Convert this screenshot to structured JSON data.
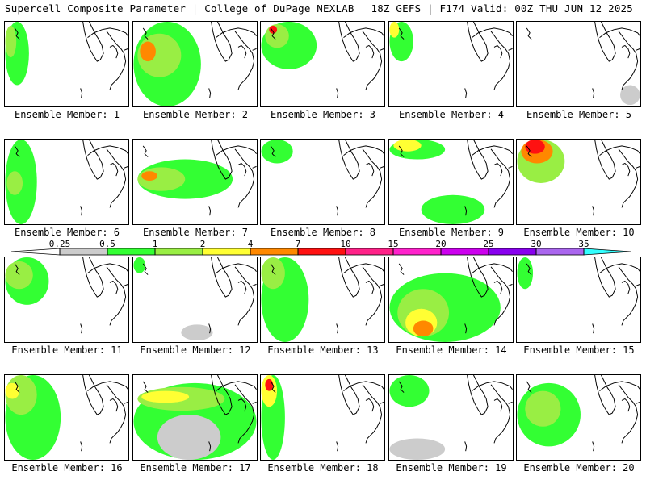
{
  "header": {
    "title_left": "Supercell Composite Parameter | College of DuPage NEXLAB",
    "title_right": "18Z GEFS | F174 Valid: 00Z THU JUN 12 2025"
  },
  "legend": {
    "ticks": [
      "0.25",
      "0.5",
      "1",
      "2",
      "4",
      "7",
      "10",
      "15",
      "20",
      "25",
      "30",
      "35"
    ],
    "colors": [
      "#cccccc",
      "#33ff33",
      "#99ee44",
      "#ffff33",
      "#ff8800",
      "#ff1111",
      "#ff2288",
      "#ff22cc",
      "#cc00ee",
      "#8800ee",
      "#aa66ee",
      "#33ffff"
    ]
  },
  "panels": [
    {
      "label": "Ensemble Member: 1",
      "blobs": [
        {
          "x": 0,
          "y": 0,
          "w": 30,
          "h": 80,
          "c": "#33ff33"
        },
        {
          "x": 0,
          "y": 5,
          "w": 14,
          "h": 40,
          "c": "#99ee44"
        }
      ]
    },
    {
      "label": "Ensemble Member: 2",
      "blobs": [
        {
          "x": 0,
          "y": 0,
          "w": 85,
          "h": 107,
          "c": "#33ff33"
        },
        {
          "x": 5,
          "y": 15,
          "w": 55,
          "h": 55,
          "c": "#99ee44"
        },
        {
          "x": 8,
          "y": 25,
          "w": 20,
          "h": 25,
          "c": "#ff8800"
        }
      ]
    },
    {
      "label": "Ensemble Member: 3",
      "blobs": [
        {
          "x": 0,
          "y": 0,
          "w": 70,
          "h": 60,
          "c": "#33ff33"
        },
        {
          "x": 5,
          "y": 3,
          "w": 30,
          "h": 30,
          "c": "#99ee44"
        },
        {
          "x": 10,
          "y": 5,
          "w": 10,
          "h": 10,
          "c": "#ff1111"
        }
      ]
    },
    {
      "label": "Ensemble Member: 4",
      "blobs": [
        {
          "x": 0,
          "y": 0,
          "w": 30,
          "h": 50,
          "c": "#33ff33"
        },
        {
          "x": 0,
          "y": 0,
          "w": 12,
          "h": 20,
          "c": "#ffff33"
        }
      ]
    },
    {
      "label": "Ensemble Member: 5",
      "blobs": [
        {
          "x": 130,
          "y": 80,
          "w": 25,
          "h": 25,
          "c": "#cccccc"
        }
      ]
    },
    {
      "label": "Ensemble Member: 6",
      "blobs": [
        {
          "x": 0,
          "y": 0,
          "w": 40,
          "h": 107,
          "c": "#33ff33"
        },
        {
          "x": 2,
          "y": 40,
          "w": 20,
          "h": 30,
          "c": "#99ee44"
        }
      ]
    },
    {
      "label": "Ensemble Member: 7",
      "blobs": [
        {
          "x": 5,
          "y": 25,
          "w": 120,
          "h": 50,
          "c": "#33ff33"
        },
        {
          "x": 5,
          "y": 35,
          "w": 60,
          "h": 30,
          "c": "#99ee44"
        },
        {
          "x": 10,
          "y": 40,
          "w": 20,
          "h": 12,
          "c": "#ff8800"
        }
      ]
    },
    {
      "label": "Ensemble Member: 8",
      "blobs": [
        {
          "x": 0,
          "y": 0,
          "w": 40,
          "h": 30,
          "c": "#33ff33"
        }
      ]
    },
    {
      "label": "Ensemble Member: 9",
      "blobs": [
        {
          "x": 0,
          "y": 0,
          "w": 70,
          "h": 25,
          "c": "#33ff33"
        },
        {
          "x": 5,
          "y": 0,
          "w": 35,
          "h": 15,
          "c": "#ffff33"
        },
        {
          "x": 40,
          "y": 70,
          "w": 80,
          "h": 37,
          "c": "#33ff33"
        }
      ]
    },
    {
      "label": "Ensemble Member: 10",
      "blobs": [
        {
          "x": 0,
          "y": 0,
          "w": 60,
          "h": 55,
          "c": "#99ee44"
        },
        {
          "x": 5,
          "y": 0,
          "w": 40,
          "h": 30,
          "c": "#ff8800"
        },
        {
          "x": 10,
          "y": 0,
          "w": 25,
          "h": 18,
          "c": "#ff1111"
        }
      ]
    },
    {
      "label": "Ensemble Member: 11",
      "blobs": [
        {
          "x": 0,
          "y": 0,
          "w": 55,
          "h": 60,
          "c": "#33ff33"
        },
        {
          "x": 0,
          "y": 5,
          "w": 35,
          "h": 35,
          "c": "#99ee44"
        }
      ]
    },
    {
      "label": "Ensemble Member: 12",
      "blobs": [
        {
          "x": 0,
          "y": 0,
          "w": 15,
          "h": 20,
          "c": "#33ff33"
        },
        {
          "x": 60,
          "y": 85,
          "w": 40,
          "h": 20,
          "c": "#cccccc"
        }
      ]
    },
    {
      "label": "Ensemble Member: 13",
      "blobs": [
        {
          "x": 0,
          "y": 0,
          "w": 60,
          "h": 107,
          "c": "#33ff33"
        },
        {
          "x": 0,
          "y": 0,
          "w": 30,
          "h": 40,
          "c": "#99ee44"
        }
      ]
    },
    {
      "label": "Ensemble Member: 14",
      "blobs": [
        {
          "x": 0,
          "y": 20,
          "w": 140,
          "h": 87,
          "c": "#33ff33"
        },
        {
          "x": 10,
          "y": 40,
          "w": 65,
          "h": 60,
          "c": "#99ee44"
        },
        {
          "x": 20,
          "y": 65,
          "w": 40,
          "h": 35,
          "c": "#ffff33"
        },
        {
          "x": 30,
          "y": 80,
          "w": 25,
          "h": 20,
          "c": "#ff8800"
        }
      ]
    },
    {
      "label": "Ensemble Member: 15",
      "blobs": [
        {
          "x": 0,
          "y": 0,
          "w": 20,
          "h": 40,
          "c": "#33ff33"
        }
      ]
    },
    {
      "label": "Ensemble Member: 16",
      "blobs": [
        {
          "x": 0,
          "y": 0,
          "w": 70,
          "h": 107,
          "c": "#33ff33"
        },
        {
          "x": 0,
          "y": 0,
          "w": 40,
          "h": 50,
          "c": "#99ee44"
        },
        {
          "x": 0,
          "y": 10,
          "w": 18,
          "h": 20,
          "c": "#ffff33"
        }
      ]
    },
    {
      "label": "Ensemble Member: 17",
      "blobs": [
        {
          "x": 0,
          "y": 10,
          "w": 155,
          "h": 97,
          "c": "#33ff33"
        },
        {
          "x": 5,
          "y": 15,
          "w": 110,
          "h": 30,
          "c": "#99ee44"
        },
        {
          "x": 10,
          "y": 20,
          "w": 60,
          "h": 15,
          "c": "#ffff33"
        },
        {
          "x": 30,
          "y": 50,
          "w": 80,
          "h": 57,
          "c": "#cccccc"
        }
      ]
    },
    {
      "label": "Ensemble Member: 18",
      "blobs": [
        {
          "x": 0,
          "y": 0,
          "w": 30,
          "h": 107,
          "c": "#33ff33"
        },
        {
          "x": 0,
          "y": 0,
          "w": 20,
          "h": 40,
          "c": "#ffff33"
        },
        {
          "x": 5,
          "y": 5,
          "w": 10,
          "h": 15,
          "c": "#ff1111"
        }
      ]
    },
    {
      "label": "Ensemble Member: 19",
      "blobs": [
        {
          "x": 0,
          "y": 0,
          "w": 50,
          "h": 40,
          "c": "#33ff33"
        },
        {
          "x": 0,
          "y": 80,
          "w": 70,
          "h": 27,
          "c": "#cccccc"
        }
      ]
    },
    {
      "label": "Ensemble Member: 20",
      "blobs": [
        {
          "x": 0,
          "y": 10,
          "w": 80,
          "h": 80,
          "c": "#33ff33"
        },
        {
          "x": 10,
          "y": 20,
          "w": 45,
          "h": 45,
          "c": "#99ee44"
        }
      ]
    }
  ]
}
